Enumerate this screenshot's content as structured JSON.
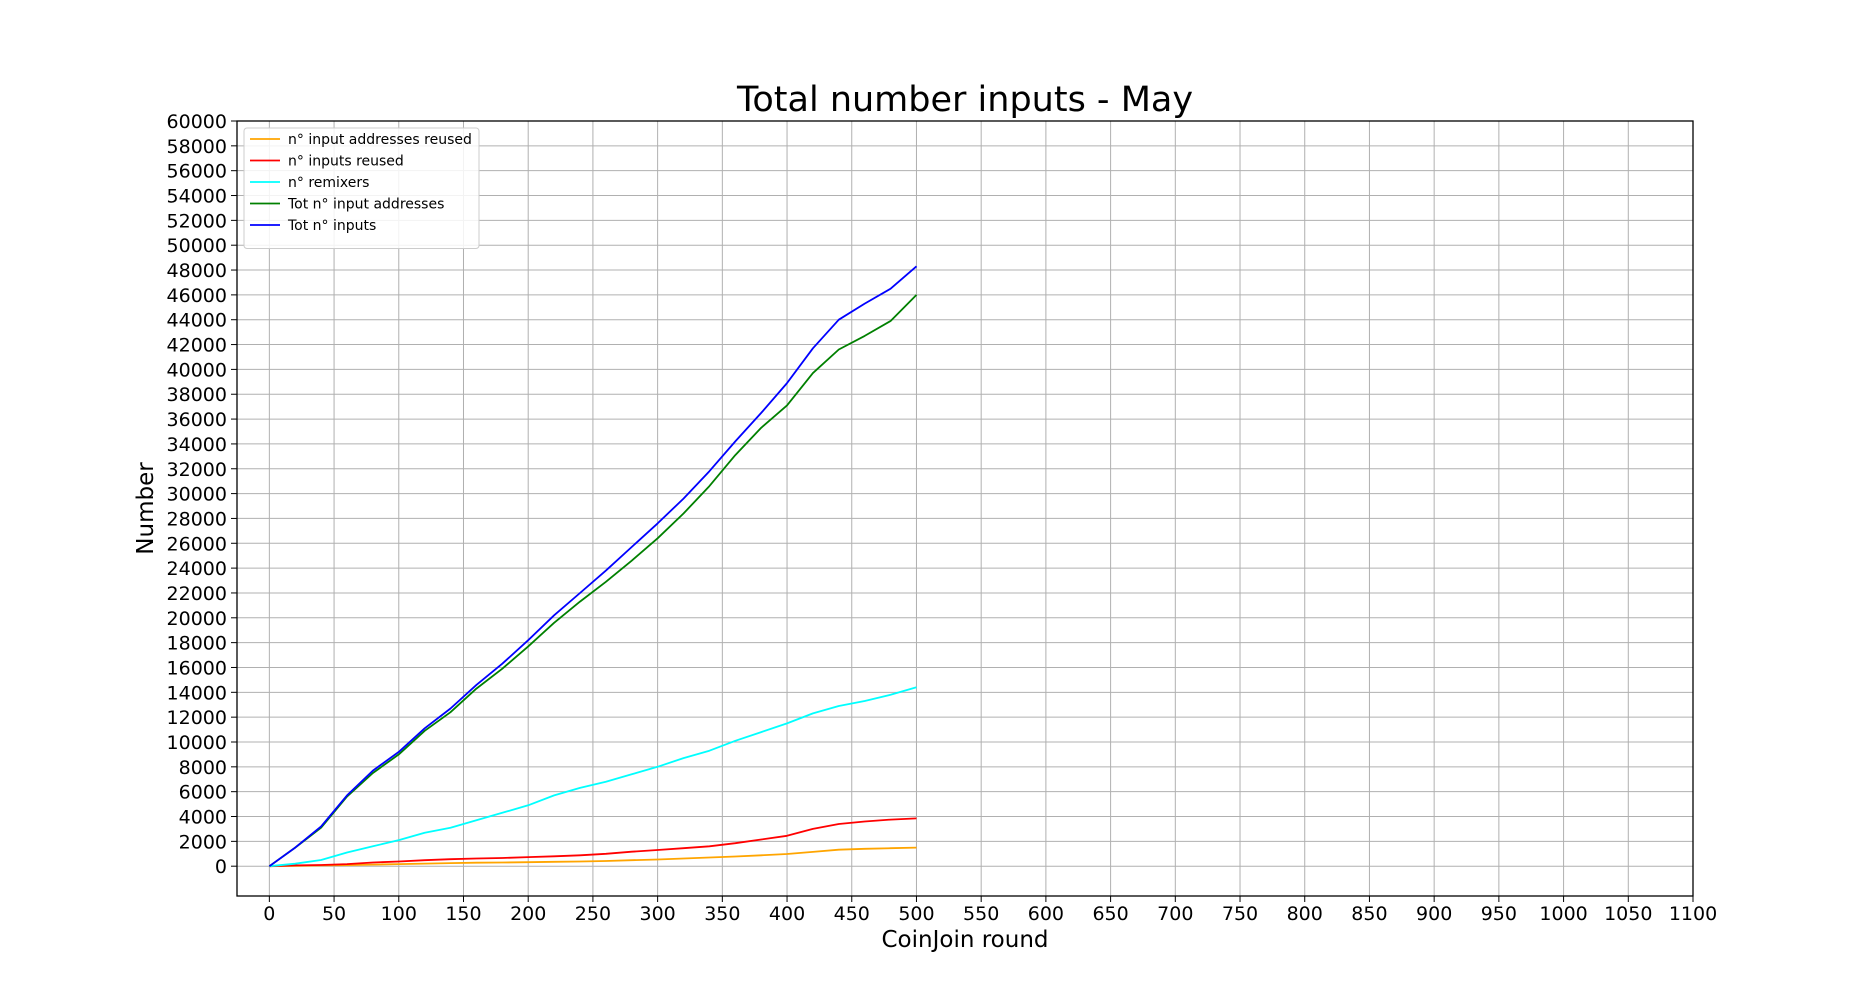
{
  "chart_data": {
    "type": "line",
    "title": "Total number inputs - May",
    "xlabel": "CoinJoin round",
    "ylabel": "Number",
    "xlim": [
      -25,
      1100
    ],
    "ylim": [
      -2400,
      60000
    ],
    "xticks": [
      0,
      50,
      100,
      150,
      200,
      250,
      300,
      350,
      400,
      450,
      500,
      550,
      600,
      650,
      700,
      750,
      800,
      850,
      900,
      950,
      1000,
      1050,
      1100
    ],
    "yticks": [
      0,
      2000,
      4000,
      6000,
      8000,
      10000,
      12000,
      14000,
      16000,
      18000,
      20000,
      22000,
      24000,
      26000,
      28000,
      30000,
      32000,
      34000,
      36000,
      38000,
      40000,
      42000,
      44000,
      46000,
      48000,
      50000,
      52000,
      54000,
      56000,
      58000,
      60000
    ],
    "grid": true,
    "legend_position": "top-left",
    "x": [
      0,
      20,
      40,
      60,
      80,
      100,
      120,
      140,
      160,
      180,
      200,
      220,
      240,
      260,
      280,
      300,
      320,
      340,
      360,
      380,
      400,
      420,
      440,
      460,
      480,
      500
    ],
    "series": [
      {
        "name": "n° input addresses reused",
        "color": "#ffa500",
        "values": [
          0,
          30,
          60,
          90,
          130,
          170,
          210,
          250,
          280,
          300,
          320,
          350,
          380,
          420,
          480,
          540,
          620,
          700,
          780,
          880,
          980,
          1150,
          1330,
          1400,
          1450,
          1500
        ]
      },
      {
        "name": "n° inputs reused",
        "color": "#ff0000",
        "values": [
          0,
          60,
          100,
          170,
          300,
          380,
          480,
          560,
          620,
          660,
          730,
          800,
          880,
          1000,
          1170,
          1300,
          1450,
          1600,
          1850,
          2150,
          2450,
          3000,
          3400,
          3600,
          3750,
          3850
        ]
      },
      {
        "name": "n° remixers",
        "color": "#00ffff",
        "values": [
          0,
          200,
          500,
          1100,
          1600,
          2100,
          2700,
          3100,
          3700,
          4300,
          4900,
          5700,
          6300,
          6800,
          7400,
          8000,
          8700,
          9300,
          10100,
          10800,
          11500,
          12300,
          12900,
          13300,
          13800,
          14400
        ]
      },
      {
        "name": "Tot n° input addresses",
        "color": "#008000",
        "values": [
          0,
          1500,
          3100,
          5600,
          7500,
          9000,
          10900,
          12400,
          14300,
          15900,
          17700,
          19600,
          21300,
          22900,
          24600,
          26400,
          28400,
          30600,
          33100,
          35300,
          37100,
          39700,
          41600,
          42700,
          43900,
          46000
        ]
      },
      {
        "name": "Tot n° inputs",
        "color": "#0000ff",
        "values": [
          0,
          1500,
          3200,
          5700,
          7700,
          9200,
          11100,
          12700,
          14600,
          16300,
          18200,
          20200,
          22000,
          23800,
          25700,
          27600,
          29600,
          31800,
          34200,
          36500,
          38900,
          41700,
          44000,
          45300,
          46500,
          48300
        ]
      }
    ]
  }
}
